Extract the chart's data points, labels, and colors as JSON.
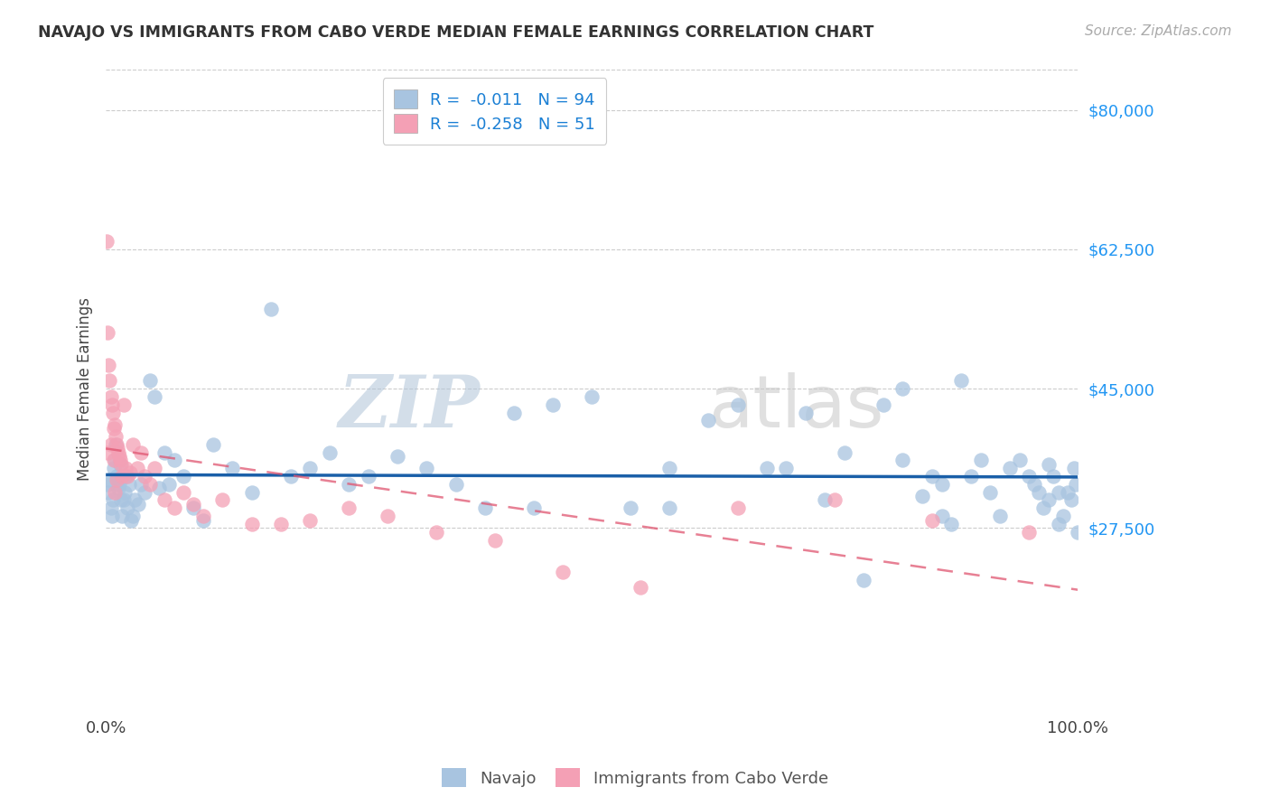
{
  "title": "NAVAJO VS IMMIGRANTS FROM CABO VERDE MEDIAN FEMALE EARNINGS CORRELATION CHART",
  "source": "Source: ZipAtlas.com",
  "ylabel": "Median Female Earnings",
  "x_range": [
    0,
    1.0
  ],
  "y_range": [
    5000,
    85000
  ],
  "navajo_R": "-0.011",
  "navajo_N": "94",
  "caboverde_R": "-0.258",
  "caboverde_N": "51",
  "navajo_color": "#a8c4e0",
  "caboverde_color": "#f4a0b5",
  "trend_navajo_color": "#1a5fa8",
  "trend_caboverde_color": "#e05570",
  "watermark_zip": "ZIP",
  "watermark_atlas": "atlas",
  "y_tick_vals": [
    27500,
    45000,
    62500,
    80000
  ],
  "y_tick_labels": [
    "$27,500",
    "$45,000",
    "$62,500",
    "$80,000"
  ],
  "navajo_x": [
    0.002,
    0.003,
    0.004,
    0.005,
    0.006,
    0.007,
    0.008,
    0.009,
    0.01,
    0.011,
    0.012,
    0.013,
    0.014,
    0.015,
    0.016,
    0.017,
    0.018,
    0.019,
    0.02,
    0.022,
    0.024,
    0.026,
    0.028,
    0.03,
    0.033,
    0.036,
    0.04,
    0.045,
    0.05,
    0.055,
    0.06,
    0.065,
    0.07,
    0.08,
    0.09,
    0.1,
    0.11,
    0.13,
    0.15,
    0.17,
    0.19,
    0.21,
    0.23,
    0.25,
    0.27,
    0.3,
    0.33,
    0.36,
    0.39,
    0.42,
    0.46,
    0.5,
    0.54,
    0.58,
    0.62,
    0.65,
    0.68,
    0.7,
    0.72,
    0.74,
    0.76,
    0.78,
    0.8,
    0.82,
    0.84,
    0.85,
    0.86,
    0.87,
    0.88,
    0.89,
    0.9,
    0.91,
    0.92,
    0.93,
    0.94,
    0.95,
    0.955,
    0.96,
    0.965,
    0.97,
    0.975,
    0.98,
    0.985,
    0.99,
    0.993,
    0.996,
    0.998,
    1.0,
    0.44,
    0.58,
    0.82,
    0.86,
    0.97,
    0.98
  ],
  "navajo_y": [
    33000,
    32000,
    33500,
    30000,
    29000,
    31000,
    35000,
    36000,
    38000,
    34000,
    33500,
    32500,
    33000,
    35500,
    31000,
    29000,
    31000,
    32000,
    34000,
    30000,
    33000,
    28500,
    29000,
    31000,
    30500,
    33000,
    32000,
    46000,
    44000,
    32500,
    37000,
    33000,
    36000,
    34000,
    30000,
    28500,
    38000,
    35000,
    32000,
    55000,
    34000,
    35000,
    37000,
    33000,
    34000,
    36500,
    35000,
    33000,
    30000,
    42000,
    43000,
    44000,
    30000,
    35000,
    41000,
    43000,
    35000,
    35000,
    42000,
    31000,
    37000,
    21000,
    43000,
    36000,
    31500,
    34000,
    33000,
    28000,
    46000,
    34000,
    36000,
    32000,
    29000,
    35000,
    36000,
    34000,
    33000,
    32000,
    30000,
    35500,
    34000,
    28000,
    29000,
    32000,
    31000,
    35000,
    33000,
    27000,
    30000,
    30000,
    45000,
    29000,
    31000,
    32000
  ],
  "caboverde_x": [
    0.001,
    0.002,
    0.002,
    0.003,
    0.004,
    0.005,
    0.005,
    0.006,
    0.007,
    0.008,
    0.008,
    0.009,
    0.009,
    0.01,
    0.011,
    0.011,
    0.012,
    0.013,
    0.014,
    0.015,
    0.016,
    0.017,
    0.018,
    0.02,
    0.022,
    0.025,
    0.028,
    0.032,
    0.036,
    0.04,
    0.045,
    0.05,
    0.06,
    0.07,
    0.08,
    0.09,
    0.1,
    0.12,
    0.15,
    0.18,
    0.21,
    0.25,
    0.29,
    0.34,
    0.4,
    0.47,
    0.55,
    0.65,
    0.75,
    0.85,
    0.95
  ],
  "caboverde_y": [
    63500,
    52000,
    37000,
    48000,
    46000,
    44000,
    38000,
    43000,
    42000,
    40000,
    36000,
    40500,
    32000,
    39000,
    38000,
    33500,
    37500,
    37000,
    36500,
    36000,
    35500,
    34000,
    43000,
    35000,
    34000,
    34500,
    38000,
    35000,
    37000,
    34000,
    33000,
    35000,
    31000,
    30000,
    32000,
    30500,
    29000,
    31000,
    28000,
    28000,
    28500,
    30000,
    29000,
    27000,
    26000,
    22000,
    20000,
    30000,
    31000,
    28500,
    27000
  ]
}
